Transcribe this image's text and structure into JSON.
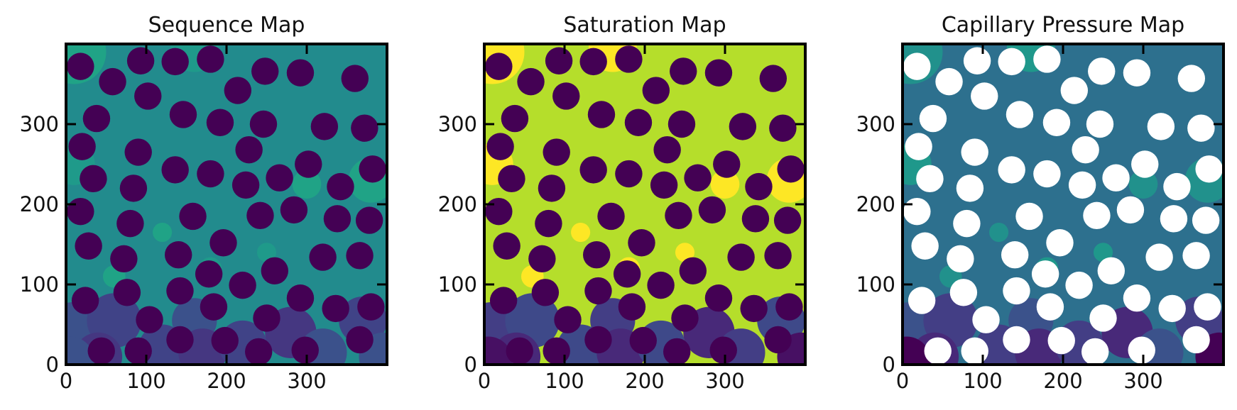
{
  "colors": {
    "sequence": {
      "background": "#228b8d",
      "grain": "#440154",
      "bottom": [
        "#3b518b",
        "#404387",
        "#453781"
      ],
      "patches": [
        "#20a386",
        "#1f9a8a"
      ]
    },
    "saturation": {
      "background": "#b5de2b",
      "grain": "#440154",
      "bottom": [
        "#433e85",
        "#3e4989",
        "#482979",
        "#471063"
      ],
      "patches": [
        "#fde725"
      ]
    },
    "capillary": {
      "background": "#2d708e",
      "grain": "#ffffff",
      "bottom": [
        "#3b528b",
        "#433e85",
        "#482979",
        "#440154"
      ],
      "patches": [
        "#21918c",
        "#1f988b"
      ]
    }
  },
  "chart_data": [
    {
      "type": "heatmap",
      "title": "Sequence Map",
      "xlabel": "",
      "ylabel": "",
      "xlim": [
        0,
        400
      ],
      "ylim": [
        0,
        400
      ],
      "xticks": [
        "0",
        "100",
        "200",
        "300"
      ],
      "yticks": [
        "0",
        "100",
        "200",
        "300"
      ],
      "colormap": "viridis",
      "grain_color_key": "sequence"
    },
    {
      "type": "heatmap",
      "title": "Saturation Map",
      "xlabel": "",
      "ylabel": "",
      "xlim": [
        0,
        400
      ],
      "ylim": [
        0,
        400
      ],
      "xticks": [
        "0",
        "100",
        "200",
        "300"
      ],
      "yticks": [
        "0",
        "100",
        "200",
        "300"
      ],
      "colormap": "viridis",
      "grain_color_key": "saturation"
    },
    {
      "type": "heatmap",
      "title": "Capillary Pressure Map",
      "xlabel": "",
      "ylabel": "",
      "xlim": [
        0,
        400
      ],
      "ylim": [
        0,
        400
      ],
      "xticks": [
        "0",
        "100",
        "200",
        "300"
      ],
      "yticks": [
        "0",
        "100",
        "200",
        "300"
      ],
      "colormap": "viridis",
      "grain_color_key": "capillary"
    }
  ],
  "grains": [
    [
      18,
      372
    ],
    [
      58,
      353
    ],
    [
      93,
      379
    ],
    [
      136,
      378
    ],
    [
      180,
      381
    ],
    [
      248,
      366
    ],
    [
      292,
      364
    ],
    [
      360,
      357
    ],
    [
      102,
      335
    ],
    [
      214,
      342
    ],
    [
      38,
      307
    ],
    [
      146,
      312
    ],
    [
      192,
      302
    ],
    [
      246,
      300
    ],
    [
      322,
      297
    ],
    [
      372,
      295
    ],
    [
      20,
      272
    ],
    [
      90,
      265
    ],
    [
      228,
      268
    ],
    [
      302,
      250
    ],
    [
      382,
      244
    ],
    [
      34,
      232
    ],
    [
      136,
      243
    ],
    [
      180,
      238
    ],
    [
      266,
      233
    ],
    [
      84,
      220
    ],
    [
      224,
      224
    ],
    [
      342,
      222
    ],
    [
      18,
      191
    ],
    [
      158,
      185
    ],
    [
      242,
      186
    ],
    [
      284,
      193
    ],
    [
      338,
      182
    ],
    [
      378,
      180
    ],
    [
      80,
      176
    ],
    [
      28,
      148
    ],
    [
      196,
      152
    ],
    [
      72,
      132
    ],
    [
      140,
      137
    ],
    [
      320,
      134
    ],
    [
      366,
      136
    ],
    [
      178,
      113
    ],
    [
      260,
      117
    ],
    [
      220,
      99
    ],
    [
      24,
      80
    ],
    [
      76,
      90
    ],
    [
      142,
      92
    ],
    [
      184,
      72
    ],
    [
      292,
      83
    ],
    [
      336,
      70
    ],
    [
      380,
      72
    ],
    [
      104,
      56
    ],
    [
      250,
      58
    ],
    [
      44,
      17
    ],
    [
      90,
      17
    ],
    [
      142,
      31
    ],
    [
      198,
      30
    ],
    [
      240,
      16
    ],
    [
      298,
      18
    ],
    [
      366,
      31
    ]
  ],
  "bottom_blobs": [
    {
      "x": 10,
      "y": 40,
      "r": 38,
      "c": 0
    },
    {
      "x": 60,
      "y": 55,
      "r": 34,
      "c": 1
    },
    {
      "x": 40,
      "y": 10,
      "r": 30,
      "c": 2
    },
    {
      "x": 120,
      "y": 20,
      "r": 30,
      "c": 1
    },
    {
      "x": 160,
      "y": 55,
      "r": 28,
      "c": 0
    },
    {
      "x": 170,
      "y": 15,
      "r": 30,
      "c": 2
    },
    {
      "x": 220,
      "y": 25,
      "r": 30,
      "c": 1
    },
    {
      "x": 280,
      "y": 40,
      "r": 32,
      "c": 2
    },
    {
      "x": 320,
      "y": 15,
      "r": 30,
      "c": 0
    },
    {
      "x": 370,
      "y": 55,
      "r": 30,
      "c": 1
    },
    {
      "x": 395,
      "y": 10,
      "r": 30,
      "c": 3
    },
    {
      "x": 5,
      "y": 5,
      "r": 30,
      "c": 3
    }
  ],
  "patches": [
    {
      "x": 10,
      "y": 390,
      "r": 40
    },
    {
      "x": 160,
      "y": 395,
      "r": 30
    },
    {
      "x": 380,
      "y": 230,
      "r": 28
    },
    {
      "x": 10,
      "y": 250,
      "r": 26
    },
    {
      "x": 300,
      "y": 225,
      "r": 18
    },
    {
      "x": 180,
      "y": 120,
      "r": 14
    },
    {
      "x": 60,
      "y": 110,
      "r": 14
    },
    {
      "x": 250,
      "y": 140,
      "r": 12
    },
    {
      "x": 120,
      "y": 165,
      "r": 12
    }
  ]
}
